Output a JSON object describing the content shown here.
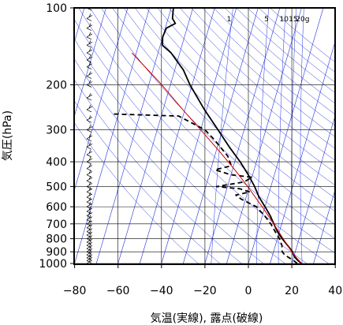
{
  "chart_data": {
    "type": "line",
    "subtype": "skew-t log-p",
    "xlabel": "気温(実線), 露点(破線)",
    "ylabel": "気圧(hPa)",
    "xlim": [
      -80,
      40
    ],
    "ylim": [
      1000,
      100
    ],
    "y_scale": "log",
    "grid": true,
    "x_ticks": [
      -80,
      -60,
      -40,
      -20,
      0,
      20,
      40
    ],
    "x_tick_labels": [
      "−80",
      "−60",
      "−40",
      "−20",
      "0",
      "20",
      "40"
    ],
    "y_ticks": [
      100,
      200,
      300,
      400,
      500,
      600,
      700,
      800,
      900,
      1000
    ],
    "y_tick_labels": [
      "100",
      "200",
      "300",
      "400",
      "500",
      "600",
      "700",
      "800",
      "900",
      "1000"
    ],
    "mixing_ratio_labels": [
      "1",
      "5",
      "10",
      "15",
      "20g"
    ],
    "series": [
      {
        "style": "solid",
        "color": "#000000",
        "points": [
          {
            "p": 1000,
            "t": 24.5
          },
          {
            "p": 975,
            "t": 22.5
          },
          {
            "p": 950,
            "t": 20.8
          },
          {
            "p": 925,
            "t": 19.6
          },
          {
            "p": 900,
            "t": 18.8
          },
          {
            "p": 850,
            "t": 15.6
          },
          {
            "p": 800,
            "t": 12.2
          },
          {
            "p": 750,
            "t": 9.0
          },
          {
            "p": 700,
            "t": 6.4
          },
          {
            "p": 650,
            "t": 3.6
          },
          {
            "p": 600,
            "t": 0.0
          },
          {
            "p": 550,
            "t": -4.0
          },
          {
            "p": 500,
            "t": -7.5
          },
          {
            "p": 450,
            "t": -12.0
          },
          {
            "p": 400,
            "t": -17.5
          },
          {
            "p": 350,
            "t": -24.5
          },
          {
            "p": 300,
            "t": -32.0
          },
          {
            "p": 250,
            "t": -41.0
          },
          {
            "p": 200,
            "t": -51.0
          },
          {
            "p": 175,
            "t": -56.0
          },
          {
            "p": 150,
            "t": -64.0
          },
          {
            "p": 140,
            "t": -69.0
          },
          {
            "p": 130,
            "t": -70.0
          },
          {
            "p": 120,
            "t": -69.5
          },
          {
            "p": 115,
            "t": -66.0
          },
          {
            "p": 110,
            "t": -68.0
          },
          {
            "p": 100,
            "t": -69.0
          }
        ]
      },
      {
        "style": "dashed",
        "color": "#000000",
        "points": [
          {
            "p": 1000,
            "t": 22.5
          },
          {
            "p": 975,
            "t": 20.5
          },
          {
            "p": 950,
            "t": 18.0
          },
          {
            "p": 925,
            "t": 15.5
          },
          {
            "p": 900,
            "t": 14.0
          },
          {
            "p": 850,
            "t": 13.0
          },
          {
            "p": 800,
            "t": 11.0
          },
          {
            "p": 750,
            "t": 8.0
          },
          {
            "p": 700,
            "t": 5.0
          },
          {
            "p": 650,
            "t": 1.0
          },
          {
            "p": 600,
            "t": -4.0
          },
          {
            "p": 560,
            "t": -12.0
          },
          {
            "p": 540,
            "t": -15.0
          },
          {
            "p": 525,
            "t": -9.0
          },
          {
            "p": 510,
            "t": -14.0
          },
          {
            "p": 500,
            "t": -25.0
          },
          {
            "p": 480,
            "t": -13.0
          },
          {
            "p": 460,
            "t": -10.0
          },
          {
            "p": 450,
            "t": -20.0
          },
          {
            "p": 430,
            "t": -28.0
          },
          {
            "p": 415,
            "t": -21.0
          },
          {
            "p": 380,
            "t": -24.0
          },
          {
            "p": 330,
            "t": -32.0
          },
          {
            "p": 300,
            "t": -38.0
          },
          {
            "p": 265,
            "t": -52.0
          },
          {
            "p": 260,
            "t": -83.0
          }
        ]
      },
      {
        "style": "solid",
        "color": "#cc0000",
        "points": [
          {
            "p": 1000,
            "t": 24.5
          },
          {
            "p": 950,
            "t": 21.4
          },
          {
            "p": 900,
            "t": 18.4
          },
          {
            "p": 850,
            "t": 15.6
          },
          {
            "p": 800,
            "t": 12.7
          },
          {
            "p": 750,
            "t": 9.6
          },
          {
            "p": 700,
            "t": 6.3
          },
          {
            "p": 650,
            "t": 2.7
          },
          {
            "p": 600,
            "t": -1.3
          },
          {
            "p": 550,
            "t": -5.8
          },
          {
            "p": 500,
            "t": -10.7
          },
          {
            "p": 450,
            "t": -16.4
          },
          {
            "p": 400,
            "t": -23.0
          },
          {
            "p": 350,
            "t": -30.8
          },
          {
            "p": 300,
            "t": -40.0
          },
          {
            "p": 250,
            "t": -51.0
          },
          {
            "p": 200,
            "t": -64.0
          },
          {
            "p": 165,
            "t": -76.0
          },
          {
            "p": 150,
            "t": -82.0
          }
        ]
      }
    ],
    "wind_barbs": [
      1000,
      975,
      950,
      925,
      900,
      875,
      850,
      825,
      800,
      775,
      750,
      725,
      700,
      675,
      650,
      625,
      600,
      575,
      550,
      525,
      500,
      475,
      450,
      425,
      400,
      375,
      350,
      325,
      300,
      275,
      250,
      225,
      200,
      185,
      170,
      160,
      150,
      140,
      130,
      120,
      110,
      100
    ]
  }
}
